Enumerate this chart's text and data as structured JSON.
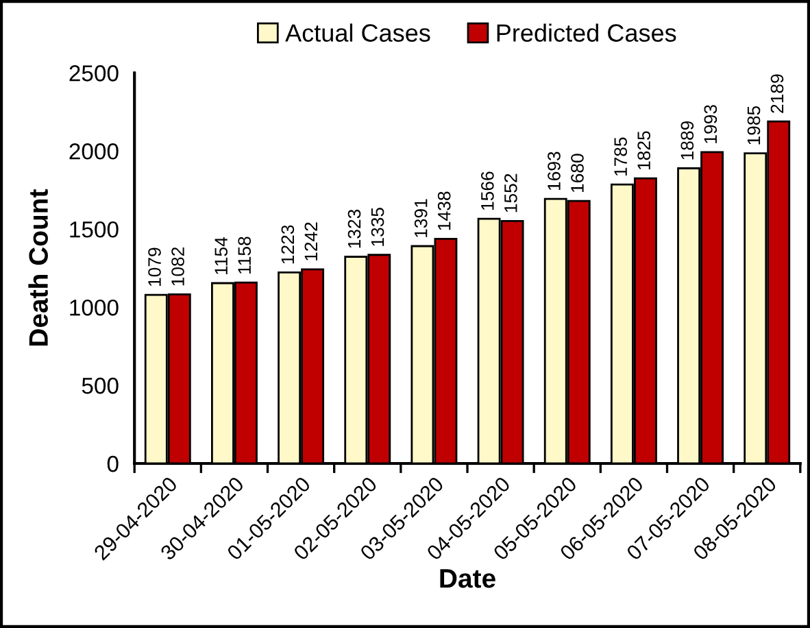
{
  "chart_data": {
    "type": "bar",
    "xlabel": "Date",
    "ylabel": "Death Count",
    "categories": [
      "29-04-2020",
      "30-04-2020",
      "01-05-2020",
      "02-05-2020",
      "03-05-2020",
      "04-05-2020",
      "05-05-2020",
      "06-05-2020",
      "07-05-2020",
      "08-05-2020"
    ],
    "series": [
      {
        "name": "Actual Cases",
        "color": "#fff8c8",
        "values": [
          1079,
          1154,
          1223,
          1323,
          1391,
          1566,
          1693,
          1785,
          1889,
          1985
        ]
      },
      {
        "name": "Predicted Cases",
        "color": "#c00000",
        "values": [
          1082,
          1158,
          1242,
          1335,
          1438,
          1552,
          1680,
          1825,
          1993,
          2189
        ]
      }
    ],
    "ylim": [
      0,
      2500
    ],
    "yticks": [
      0,
      500,
      1000,
      1500,
      2000,
      2500
    ],
    "data_labels": true,
    "legend": "top",
    "grid": false
  }
}
